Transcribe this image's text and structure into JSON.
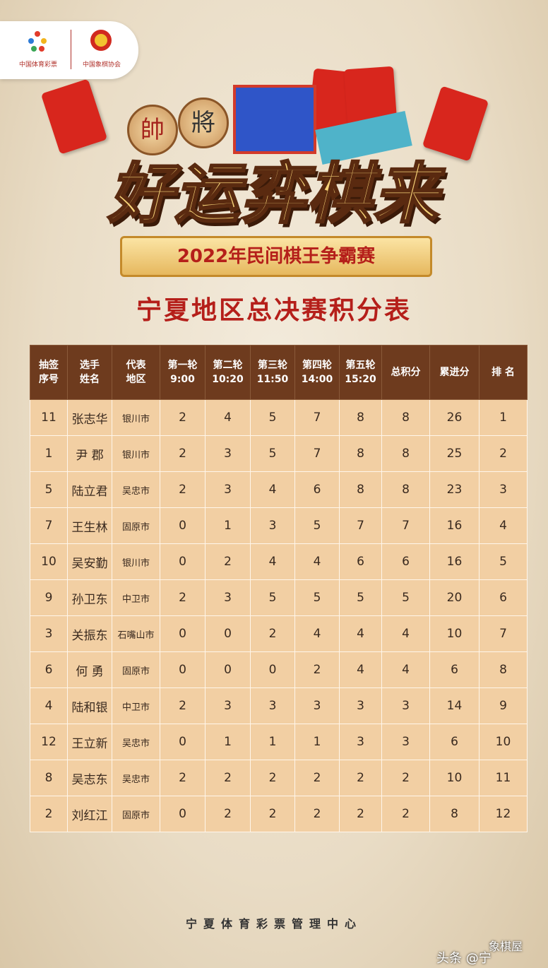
{
  "header": {
    "logo_left": "中国体育彩票",
    "logo_right": "中国象棋协会",
    "piece_red": "帥",
    "piece_black": "將",
    "title": "好运弈棋来",
    "banner": "2022年民间棋王争霸赛",
    "subtitle": "宁夏地区总决赛积分表"
  },
  "table": {
    "columns": [
      [
        "抽签",
        "序号"
      ],
      [
        "选手",
        "姓名"
      ],
      [
        "代表",
        "地区"
      ],
      [
        "第一轮",
        "9:00"
      ],
      [
        "第二轮",
        "10:20"
      ],
      [
        "第三轮",
        "11:50"
      ],
      [
        "第四轮",
        "14:00"
      ],
      [
        "第五轮",
        "15:20"
      ],
      [
        "总积分"
      ],
      [
        "累进分"
      ],
      [
        "排 名"
      ]
    ],
    "rows": [
      [
        11,
        "张志华",
        "银川市",
        2,
        4,
        5,
        7,
        8,
        8,
        26,
        1
      ],
      [
        1,
        "尹 郡",
        "银川市",
        2,
        3,
        5,
        7,
        8,
        8,
        25,
        2
      ],
      [
        5,
        "陆立君",
        "吴忠市",
        2,
        3,
        4,
        6,
        8,
        8,
        23,
        3
      ],
      [
        7,
        "王生林",
        "固原市",
        0,
        1,
        3,
        5,
        7,
        7,
        16,
        4
      ],
      [
        10,
        "吴安勤",
        "银川市",
        0,
        2,
        4,
        4,
        6,
        6,
        16,
        5
      ],
      [
        9,
        "孙卫东",
        "中卫市",
        2,
        3,
        5,
        5,
        5,
        5,
        20,
        6
      ],
      [
        3,
        "关振东",
        "石嘴山市",
        0,
        0,
        2,
        4,
        4,
        4,
        10,
        7
      ],
      [
        6,
        "何 勇",
        "固原市",
        0,
        0,
        0,
        2,
        4,
        4,
        6,
        8
      ],
      [
        4,
        "陆和银",
        "中卫市",
        2,
        3,
        3,
        3,
        3,
        3,
        14,
        9
      ],
      [
        12,
        "王立新",
        "吴忠市",
        0,
        1,
        1,
        1,
        3,
        3,
        6,
        10
      ],
      [
        8,
        "吴志东",
        "吴忠市",
        2,
        2,
        2,
        2,
        2,
        2,
        10,
        11
      ],
      [
        2,
        "刘红江",
        "固原市",
        0,
        2,
        2,
        2,
        2,
        2,
        8,
        12
      ]
    ]
  },
  "footer": "宁夏体育彩票管理中心",
  "watermark": {
    "source": "头条 @宁",
    "site": "象棋屋"
  }
}
